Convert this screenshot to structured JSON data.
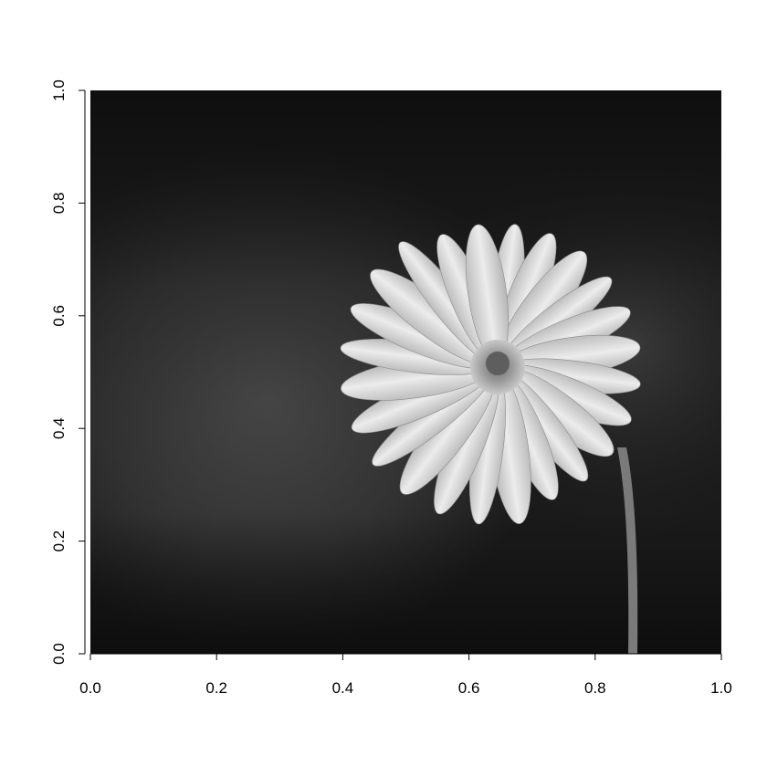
{
  "chart_data": {
    "type": "heatmap",
    "title": "",
    "xlabel": "",
    "ylabel": "",
    "xlim": [
      0,
      1
    ],
    "ylim": [
      0,
      1
    ],
    "x_ticks": [
      0.0,
      0.2,
      0.4,
      0.6,
      0.8,
      1.0
    ],
    "y_ticks": [
      0.0,
      0.2,
      0.4,
      0.6,
      0.8,
      1.0
    ],
    "x_tick_labels": [
      "0.0",
      "0.2",
      "0.4",
      "0.6",
      "0.8",
      "1.0"
    ],
    "y_tick_labels": [
      "0.0",
      "0.2",
      "0.4",
      "0.6",
      "0.8",
      "1.0"
    ],
    "colormap": "grayscale",
    "image_content": "grayscale photo of a white daisy flower on a dark blurred background",
    "grid": false,
    "legend": "none"
  }
}
